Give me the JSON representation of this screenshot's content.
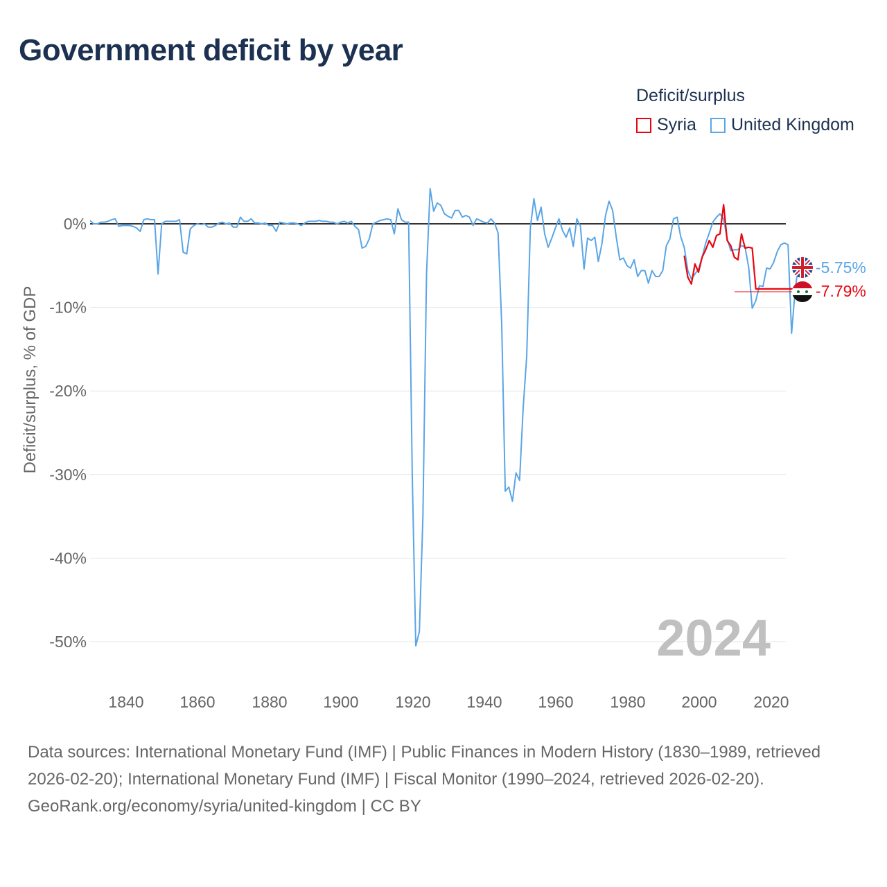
{
  "title": "Government deficit by year",
  "legend": {
    "title": "Deficit/surplus",
    "items": [
      {
        "label": "Syria",
        "color": "#e8060f"
      },
      {
        "label": "United Kingdom",
        "color": "#5aa5e6"
      }
    ]
  },
  "footer": {
    "sources": "Data sources: International Monetary Fund (IMF) | Public Finances in Modern History (1830–1989, retrieved 2026-02-20); International Monetary Fund (IMF) | Fiscal Monitor (1990–2024, retrieved 2026-02-20).",
    "credit": "GeoRank.org/economy/syria/united-kingdom | CC BY"
  },
  "chart_data": {
    "type": "line",
    "title": "Government deficit by year",
    "ylabel": "Deficit/surplus, % of GDP",
    "xlabel": "",
    "xlim": [
      1830,
      2024
    ],
    "ylim": [
      -55,
      5
    ],
    "x_ticks": [
      1840,
      1860,
      1880,
      1900,
      1920,
      1940,
      1960,
      1980,
      2000,
      2020
    ],
    "y_ticks": [
      0,
      -10,
      -20,
      -30,
      -40,
      -50
    ],
    "y_tick_labels": [
      "0%",
      "-10%",
      "-20%",
      "-30%",
      "-40%",
      "-50%"
    ],
    "year_label": "2024",
    "series": [
      {
        "name": "United Kingdom",
        "color": "#5aa5e6",
        "end_label": "-5.75%",
        "points": [
          [
            1830,
            0.4
          ],
          [
            1831,
            0.0
          ],
          [
            1832,
            0.0
          ],
          [
            1833,
            0.2
          ],
          [
            1834,
            0.2
          ],
          [
            1835,
            0.3
          ],
          [
            1836,
            0.5
          ],
          [
            1837,
            0.6
          ],
          [
            1838,
            -0.3
          ],
          [
            1839,
            -0.2
          ],
          [
            1840,
            -0.2
          ],
          [
            1841,
            -0.2
          ],
          [
            1842,
            -0.3
          ],
          [
            1843,
            -0.5
          ],
          [
            1844,
            -0.9
          ],
          [
            1845,
            0.5
          ],
          [
            1846,
            0.6
          ],
          [
            1847,
            0.5
          ],
          [
            1848,
            0.5
          ],
          [
            1849,
            -6.0
          ],
          [
            1850,
            0.0
          ],
          [
            1851,
            0.3
          ],
          [
            1852,
            0.3
          ],
          [
            1853,
            0.3
          ],
          [
            1854,
            0.3
          ],
          [
            1855,
            0.5
          ],
          [
            1856,
            -3.4
          ],
          [
            1857,
            -3.6
          ],
          [
            1858,
            -0.6
          ],
          [
            1859,
            -0.2
          ],
          [
            1860,
            0.0
          ],
          [
            1861,
            -0.1
          ],
          [
            1862,
            0.0
          ],
          [
            1863,
            -0.4
          ],
          [
            1864,
            -0.4
          ],
          [
            1865,
            -0.2
          ],
          [
            1866,
            0.1
          ],
          [
            1867,
            0.2
          ],
          [
            1868,
            0.0
          ],
          [
            1869,
            0.1
          ],
          [
            1870,
            -0.4
          ],
          [
            1871,
            -0.4
          ],
          [
            1872,
            0.8
          ],
          [
            1873,
            0.3
          ],
          [
            1874,
            0.3
          ],
          [
            1875,
            0.6
          ],
          [
            1876,
            0.1
          ],
          [
            1877,
            0.1
          ],
          [
            1878,
            0.0
          ],
          [
            1879,
            0.1
          ],
          [
            1880,
            -0.2
          ],
          [
            1881,
            -0.2
          ],
          [
            1882,
            -0.9
          ],
          [
            1883,
            0.2
          ],
          [
            1884,
            0.1
          ],
          [
            1885,
            0.0
          ],
          [
            1886,
            0.1
          ],
          [
            1887,
            0.1
          ],
          [
            1888,
            0.0
          ],
          [
            1889,
            -0.2
          ],
          [
            1890,
            0.1
          ],
          [
            1891,
            0.3
          ],
          [
            1892,
            0.3
          ],
          [
            1893,
            0.3
          ],
          [
            1894,
            0.4
          ],
          [
            1895,
            0.3
          ],
          [
            1896,
            0.3
          ],
          [
            1897,
            0.2
          ],
          [
            1898,
            0.2
          ],
          [
            1899,
            0.0
          ],
          [
            1900,
            0.2
          ],
          [
            1901,
            0.3
          ],
          [
            1902,
            0.1
          ],
          [
            1903,
            0.3
          ],
          [
            1904,
            -0.3
          ],
          [
            1905,
            -0.7
          ],
          [
            1906,
            -2.9
          ],
          [
            1907,
            -2.7
          ],
          [
            1908,
            -1.8
          ],
          [
            1909,
            0.0
          ],
          [
            1910,
            0.2
          ],
          [
            1911,
            0.4
          ],
          [
            1912,
            0.5
          ],
          [
            1913,
            0.6
          ],
          [
            1914,
            0.5
          ],
          [
            1915,
            -1.2
          ],
          [
            1916,
            1.8
          ],
          [
            1917,
            0.5
          ],
          [
            1918,
            0.2
          ],
          [
            1919,
            0.2
          ],
          [
            1920,
            -30.0
          ],
          [
            1921,
            -50.5
          ],
          [
            1922,
            -48.8
          ],
          [
            1923,
            -35.0
          ],
          [
            1924,
            -6.0
          ],
          [
            1925,
            4.2
          ],
          [
            1926,
            1.5
          ],
          [
            1927,
            2.5
          ],
          [
            1928,
            2.2
          ],
          [
            1929,
            1.2
          ],
          [
            1930,
            0.9
          ],
          [
            1931,
            0.7
          ],
          [
            1932,
            1.6
          ],
          [
            1933,
            1.6
          ],
          [
            1934,
            0.8
          ],
          [
            1935,
            1.0
          ],
          [
            1936,
            0.8
          ],
          [
            1937,
            -0.2
          ],
          [
            1938,
            0.6
          ],
          [
            1939,
            0.4
          ],
          [
            1940,
            0.2
          ],
          [
            1941,
            0.1
          ],
          [
            1942,
            0.6
          ],
          [
            1943,
            0.1
          ],
          [
            1944,
            -1.1
          ],
          [
            1945,
            -12.0
          ],
          [
            1946,
            -32.0
          ],
          [
            1947,
            -31.5
          ],
          [
            1948,
            -33.2
          ],
          [
            1949,
            -29.8
          ],
          [
            1950,
            -30.7
          ],
          [
            1951,
            -22.0
          ],
          [
            1952,
            -15.8
          ],
          [
            1953,
            -0.5
          ],
          [
            1954,
            3.0
          ],
          [
            1955,
            0.4
          ],
          [
            1956,
            2.0
          ],
          [
            1957,
            -1.2
          ],
          [
            1958,
            -2.8
          ],
          [
            1959,
            -1.7
          ],
          [
            1960,
            -0.5
          ],
          [
            1961,
            0.6
          ],
          [
            1962,
            -0.8
          ],
          [
            1963,
            -1.6
          ],
          [
            1964,
            -0.5
          ],
          [
            1965,
            -2.7
          ],
          [
            1966,
            0.6
          ],
          [
            1967,
            -0.3
          ],
          [
            1968,
            -5.4
          ],
          [
            1969,
            -1.7
          ],
          [
            1970,
            -2.0
          ],
          [
            1971,
            -1.6
          ],
          [
            1972,
            -4.5
          ],
          [
            1973,
            -2.4
          ],
          [
            1974,
            1.0
          ],
          [
            1975,
            2.7
          ],
          [
            1976,
            1.6
          ],
          [
            1977,
            -1.6
          ],
          [
            1978,
            -4.3
          ],
          [
            1979,
            -4.1
          ],
          [
            1980,
            -5.0
          ],
          [
            1981,
            -5.3
          ],
          [
            1982,
            -4.3
          ],
          [
            1983,
            -6.3
          ],
          [
            1984,
            -5.6
          ],
          [
            1985,
            -5.6
          ],
          [
            1986,
            -7.1
          ],
          [
            1987,
            -5.6
          ],
          [
            1988,
            -6.3
          ],
          [
            1989,
            -6.3
          ],
          [
            1990,
            -5.6
          ],
          [
            1991,
            -2.6
          ],
          [
            1992,
            -1.8
          ],
          [
            1993,
            0.6
          ],
          [
            1994,
            0.8
          ],
          [
            1995,
            -1.5
          ],
          [
            1996,
            -2.8
          ],
          [
            1997,
            -5.6
          ],
          [
            1998,
            -6.6
          ],
          [
            1999,
            -6.0
          ],
          [
            2000,
            -5.4
          ],
          [
            2001,
            -4.0
          ],
          [
            2002,
            -2.3
          ],
          [
            2003,
            -1.1
          ],
          [
            2004,
            0.2
          ],
          [
            2005,
            0.8
          ],
          [
            2006,
            1.2
          ],
          [
            2007,
            0.6
          ],
          [
            2008,
            -1.8
          ],
          [
            2009,
            -3.2
          ],
          [
            2010,
            -3.1
          ],
          [
            2011,
            -3.1
          ],
          [
            2012,
            -2.6
          ],
          [
            2013,
            -2.8
          ],
          [
            2014,
            -5.2
          ],
          [
            2015,
            -10.1
          ],
          [
            2016,
            -9.2
          ],
          [
            2017,
            -7.4
          ],
          [
            2018,
            -7.5
          ],
          [
            2019,
            -5.3
          ],
          [
            2020,
            -5.4
          ],
          [
            2021,
            -4.6
          ],
          [
            2022,
            -3.3
          ],
          [
            2023,
            -2.5
          ],
          [
            2024,
            -2.3
          ],
          [
            2025,
            -2.5
          ],
          [
            2026,
            -13.1
          ],
          [
            2027,
            -7.9
          ],
          [
            2028,
            -4.6
          ],
          [
            2029,
            -6.0
          ],
          [
            2030,
            -5.7
          ],
          [
            2031,
            -5.75
          ]
        ]
      },
      {
        "name": "Syria",
        "color": "#e8060f",
        "end_label": "-7.79%",
        "points": [
          [
            1996,
            -3.8
          ],
          [
            1997,
            -6.4
          ],
          [
            1998,
            -7.2
          ],
          [
            1999,
            -4.8
          ],
          [
            2000,
            -5.8
          ],
          [
            2001,
            -4.0
          ],
          [
            2002,
            -3.1
          ],
          [
            2003,
            -2.0
          ],
          [
            2004,
            -2.8
          ],
          [
            2005,
            -1.4
          ],
          [
            2006,
            -1.2
          ],
          [
            2007,
            2.3
          ],
          [
            2008,
            -2.0
          ],
          [
            2009,
            -2.6
          ],
          [
            2010,
            -4.0
          ],
          [
            2011,
            -4.3
          ],
          [
            2012,
            -1.2
          ],
          [
            2013,
            -2.9
          ],
          [
            2014,
            -2.8
          ],
          [
            2015,
            -2.9
          ],
          [
            2016,
            -7.79
          ],
          [
            2017,
            -7.79
          ],
          [
            2018,
            -7.79
          ],
          [
            2019,
            -7.79
          ],
          [
            2020,
            -7.79
          ],
          [
            2021,
            -7.79
          ],
          [
            2022,
            -7.79
          ],
          [
            2023,
            -7.79
          ],
          [
            2024,
            -7.79
          ],
          [
            2025,
            -7.79
          ],
          [
            2026,
            -7.79
          ],
          [
            2027,
            -7.79
          ],
          [
            2028,
            -7.79
          ],
          [
            2029,
            -7.79
          ],
          [
            2030,
            -7.79
          ],
          [
            2031,
            -7.79
          ]
        ]
      }
    ]
  }
}
